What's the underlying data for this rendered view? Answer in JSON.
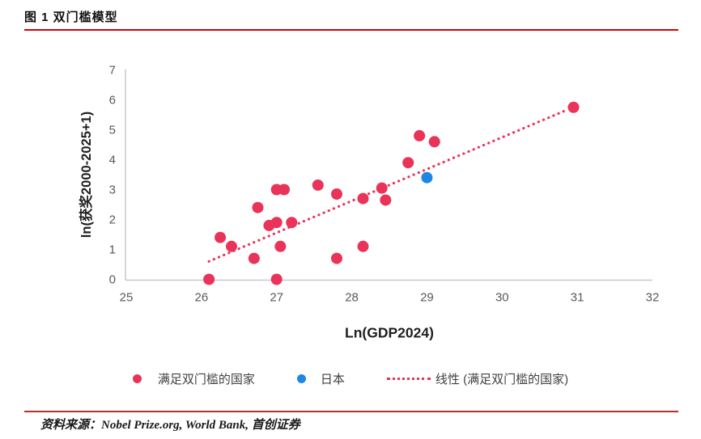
{
  "header": {
    "title": "图 1 双门槛模型"
  },
  "footer": {
    "source": "资料来源：Nobel Prize.org, World Bank,  首创证券"
  },
  "colors": {
    "accent_red": "#EA3358",
    "japan_blue": "#1E87E5",
    "title_rule": "#D40000",
    "footer_rule": "#B0342B",
    "axis_line": "#C9C9C9",
    "axis_text": "#595959",
    "label_text": "#1F1F1F"
  },
  "chart_data": {
    "type": "scatter",
    "title": "",
    "xlabel": "Ln(GDP2024)",
    "ylabel": "ln(获奖2000-2025+1)",
    "xlim": [
      25,
      32
    ],
    "ylim": [
      0,
      7
    ],
    "xticks": [
      25,
      26,
      27,
      28,
      29,
      30,
      31,
      32
    ],
    "yticks": [
      0,
      1,
      2,
      3,
      4,
      5,
      6,
      7
    ],
    "grid": false,
    "legend_position": "bottom",
    "series": [
      {
        "name": "满足双门槛的国家",
        "type": "scatter",
        "color": "#EA3358",
        "points": [
          [
            26.1,
            0.0
          ],
          [
            26.25,
            1.4
          ],
          [
            26.4,
            1.1
          ],
          [
            26.7,
            0.7
          ],
          [
            26.75,
            2.4
          ],
          [
            26.9,
            1.8
          ],
          [
            27.0,
            0.0
          ],
          [
            27.0,
            1.9
          ],
          [
            27.0,
            3.0
          ],
          [
            27.05,
            1.1
          ],
          [
            27.1,
            3.0
          ],
          [
            27.2,
            1.9
          ],
          [
            27.55,
            3.15
          ],
          [
            27.8,
            0.7
          ],
          [
            27.8,
            2.85
          ],
          [
            28.15,
            1.1
          ],
          [
            28.15,
            2.7
          ],
          [
            28.4,
            3.05
          ],
          [
            28.45,
            2.65
          ],
          [
            28.75,
            3.9
          ],
          [
            28.9,
            4.8
          ],
          [
            29.1,
            4.6
          ],
          [
            30.95,
            5.75
          ]
        ]
      },
      {
        "name": "日本",
        "type": "scatter",
        "color": "#1E87E5",
        "points": [
          [
            29.0,
            3.4
          ]
        ]
      },
      {
        "name": "线性 (满足双门槛的国家)",
        "type": "line",
        "style": "dotted",
        "color": "#EA3358",
        "points": [
          [
            26.1,
            0.6
          ],
          [
            30.85,
            5.65
          ]
        ]
      }
    ]
  }
}
